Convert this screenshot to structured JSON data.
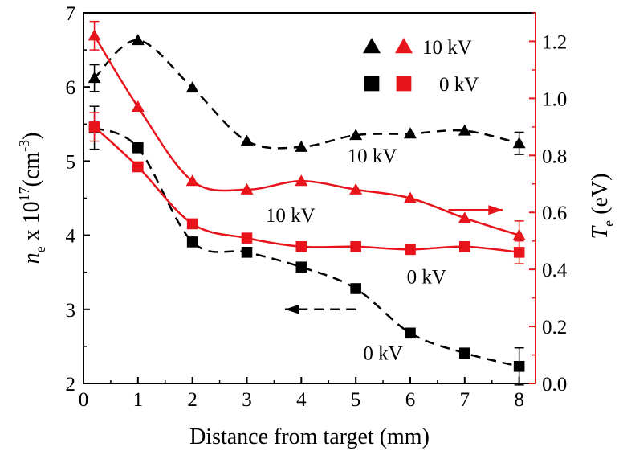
{
  "chart_data": {
    "type": "line",
    "xlabel": "Distance from target (mm)",
    "xlim": [
      0,
      8.3
    ],
    "x_ticks": [
      0,
      1,
      2,
      3,
      4,
      5,
      6,
      7,
      8
    ],
    "left_axis": {
      "label_main": "n",
      "label_sub": "e",
      "label_rest": " x 10",
      "label_sup": "17",
      "label_unit_open": "(cm",
      "label_unit_sup": "-3",
      "label_unit_close": ")",
      "ylim": [
        2,
        7
      ],
      "ticks": [
        2,
        3,
        4,
        5,
        6,
        7
      ],
      "color": "#000000"
    },
    "right_axis": {
      "label_main": "T",
      "label_sub": "e",
      "label_rest": " (eV)",
      "ylim": [
        0.0,
        1.3
      ],
      "ticks": [
        "0.0",
        "0.2",
        "0.4",
        "0.6",
        "0.8",
        "1.0",
        "1.2"
      ],
      "color": "#e8141c"
    },
    "series": [
      {
        "name": "10 kV",
        "axis": "left",
        "marker": "triangle",
        "color": "#000000",
        "line": "dashed",
        "x": [
          0.2,
          1,
          2,
          3,
          4,
          5,
          6,
          7,
          8
        ],
        "y": [
          6.12,
          6.63,
          5.99,
          5.27,
          5.19,
          5.35,
          5.37,
          5.41,
          5.24
        ],
        "err_index": 0,
        "err": 0.18
      },
      {
        "name": "0 kV",
        "axis": "left",
        "marker": "square",
        "color": "#000000",
        "line": "dashed",
        "x": [
          0.2,
          1,
          2,
          3,
          4,
          5,
          6,
          7,
          8
        ],
        "y": [
          5.45,
          5.18,
          3.91,
          3.77,
          3.57,
          3.28,
          2.68,
          2.41,
          2.23
        ],
        "err_index": 0,
        "err": 0.29
      },
      {
        "name": "10 kV",
        "axis": "right",
        "marker": "triangle",
        "color": "#e8141c",
        "line": "solid",
        "x": [
          0.2,
          1,
          2,
          3,
          4,
          5,
          6,
          7,
          8
        ],
        "y": [
          1.22,
          0.97,
          0.71,
          0.68,
          0.71,
          0.68,
          0.65,
          0.58,
          0.52
        ],
        "err_index": 8,
        "err": 0.05
      },
      {
        "name": "0 kV",
        "axis": "right",
        "marker": "square",
        "color": "#e8141c",
        "line": "solid",
        "x": [
          0.2,
          1,
          2,
          3,
          4,
          5,
          6,
          7,
          8
        ],
        "y": [
          0.9,
          0.76,
          0.56,
          0.51,
          0.48,
          0.48,
          0.47,
          0.48,
          0.46
        ],
        "err_index": 8,
        "err": 0.04
      }
    ],
    "error_bars_extra": [
      {
        "series": 2,
        "index": 0,
        "err": 0.05
      },
      {
        "series": 3,
        "index": 0,
        "err": 0.05
      },
      {
        "series": 0,
        "index": 8,
        "err": 0.15
      },
      {
        "series": 1,
        "index": 8,
        "err": 0.25
      }
    ],
    "legend": {
      "position": "top-right",
      "entries": [
        {
          "label": "10 kV",
          "marker": "triangle"
        },
        {
          "label": "0 kV",
          "marker": "square"
        }
      ]
    },
    "annotations": [
      {
        "text": "10 kV",
        "x": 5.3,
        "y": 5.08,
        "axis": "left"
      },
      {
        "text": "10 kV",
        "x": 3.8,
        "y": 4.28,
        "axis": "left"
      },
      {
        "text": "0 kV",
        "x": 6.3,
        "y": 3.45,
        "axis": "left"
      },
      {
        "text": "0 kV",
        "x": 5.5,
        "y": 2.42,
        "axis": "left"
      }
    ],
    "arrows": [
      {
        "direction": "right",
        "color": "#e8141c",
        "from_x": 6.7,
        "to_x": 7.7,
        "y": 4.34,
        "axis": "left"
      },
      {
        "direction": "left",
        "color": "#000000",
        "from_x": 5.0,
        "to_x": 3.7,
        "y": 3.0,
        "axis": "left"
      }
    ],
    "grid": false
  }
}
